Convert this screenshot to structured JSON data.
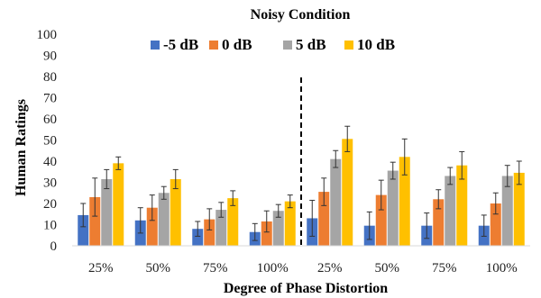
{
  "chart_data": {
    "type": "bar",
    "title": "Noisy Condition",
    "xlabel": "Degree of Phase Distortion",
    "ylabel": "Human Ratings",
    "ylim": [
      0,
      100
    ],
    "yticks": [
      0,
      10,
      20,
      30,
      40,
      50,
      60,
      70,
      80,
      90,
      100
    ],
    "categories": [
      "25%",
      "50%",
      "75%",
      "100%",
      "25%",
      "50%",
      "75%",
      "100%"
    ],
    "grid": false,
    "legend_position": "top",
    "divider_after_category_index": 3,
    "series": [
      {
        "name": "-5 dB",
        "color": "#4472C4",
        "values": [
          14.5,
          12,
          8,
          6.5,
          13,
          9.5,
          9.5,
          9.5
        ],
        "errors": [
          5.5,
          6,
          3.5,
          4,
          8.5,
          6.5,
          6,
          5
        ]
      },
      {
        "name": "0 dB",
        "color": "#ED7D31",
        "values": [
          23,
          18,
          12.5,
          11.5,
          25.5,
          24,
          22,
          20
        ],
        "errors": [
          9,
          6,
          5,
          5,
          6.5,
          7,
          4.5,
          5
        ]
      },
      {
        "name": "5 dB",
        "color": "#A5A5A5",
        "values": [
          31.5,
          25,
          17,
          16.5,
          41,
          35.5,
          33,
          33
        ],
        "errors": [
          4.5,
          3,
          3.5,
          3,
          4,
          4,
          4,
          5
        ]
      },
      {
        "name": "10 dB",
        "color": "#FFC000",
        "values": [
          39,
          31.5,
          22.5,
          21,
          50.5,
          42,
          38,
          34.5
        ],
        "errors": [
          3,
          4.5,
          3.5,
          3,
          6,
          8.5,
          6.5,
          5.5
        ]
      }
    ]
  }
}
